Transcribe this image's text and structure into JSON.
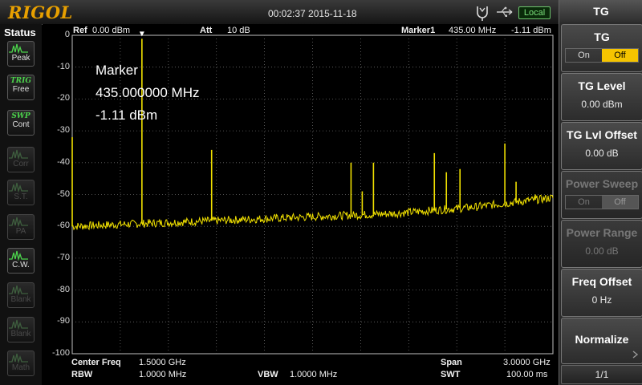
{
  "header": {
    "brand": "RIGOL",
    "datetime": "00:02:37 2015-11-18",
    "remote_state": "Local"
  },
  "status": {
    "title": "Status",
    "items": [
      {
        "icon": "peak-icon",
        "label": "Peak",
        "top_text": "",
        "active": true
      },
      {
        "icon": "trig-icon",
        "label": "Free",
        "top_text": "TRIG",
        "active": true
      },
      {
        "icon": "swp-icon",
        "label": "Cont",
        "top_text": "SWP",
        "active": true
      },
      {
        "icon": "corr-icon",
        "label": "Corr",
        "top_text": "",
        "active": false
      },
      {
        "icon": "st-icon",
        "label": "S.T.",
        "top_text": "",
        "active": false
      },
      {
        "icon": "pa-icon",
        "label": "PA",
        "top_text": "",
        "active": false
      },
      {
        "icon": "cw-icon",
        "label": "C.W.",
        "top_text": "",
        "active": true
      },
      {
        "icon": "blank-icon",
        "label": "Blank",
        "top_text": "",
        "active": false
      },
      {
        "icon": "blank-icon",
        "label": "Blank",
        "top_text": "",
        "active": false
      },
      {
        "icon": "math-icon",
        "label": "Math",
        "top_text": "",
        "active": false
      }
    ]
  },
  "plot": {
    "ref_label": "Ref",
    "ref_value": "0.00 dBm",
    "att_label": "Att",
    "att_value": "10 dB",
    "marker_label": "Marker1",
    "marker_freq": "435.00 MHz",
    "marker_level": "-1.11 dBm",
    "marker_box": {
      "title": "Marker",
      "freq": "435.000000 MHz",
      "level": "-1.11 dBm"
    },
    "center_freq_label": "Center Freq",
    "center_freq_value": "1.5000 GHz",
    "span_label": "Span",
    "span_value": "3.0000 GHz",
    "rbw_label": "RBW",
    "rbw_value": "1.0000 MHz",
    "vbw_label": "VBW",
    "vbw_value": "1.0000 MHz",
    "swt_label": "SWT",
    "swt_value": "100.00 ms",
    "trace_color": "#f0e000"
  },
  "chart_data": {
    "type": "line",
    "xlabel": "",
    "ylabel": "",
    "xlim": [
      0,
      3000
    ],
    "ylim": [
      -100,
      0
    ],
    "y_ticks": [
      "0",
      "-10",
      "-20",
      "-30",
      "-40",
      "-50",
      "-60",
      "-70",
      "-80",
      "-90",
      "-100"
    ],
    "grid": true,
    "noise_floor": [
      [
        0,
        -60
      ],
      [
        500,
        -59
      ],
      [
        1000,
        -58
      ],
      [
        1500,
        -57
      ],
      [
        2000,
        -56
      ],
      [
        2500,
        -54
      ],
      [
        3000,
        -51
      ]
    ],
    "peaks": [
      {
        "x": 0,
        "y": -32
      },
      {
        "x": 435,
        "y": -1.11
      },
      {
        "x": 870,
        "y": -36
      },
      {
        "x": 1740,
        "y": -40
      },
      {
        "x": 1810,
        "y": -49
      },
      {
        "x": 1880,
        "y": -40
      },
      {
        "x": 2260,
        "y": -37
      },
      {
        "x": 2335,
        "y": -43
      },
      {
        "x": 2420,
        "y": -42
      },
      {
        "x": 2700,
        "y": -34
      },
      {
        "x": 2770,
        "y": -46
      },
      {
        "x": 2890,
        "y": -50
      }
    ]
  },
  "menu": {
    "title": "TG",
    "items": [
      {
        "type": "toggle",
        "title": "TG",
        "on": "On",
        "off": "Off",
        "selected": "Off",
        "enabled": true
      },
      {
        "type": "value",
        "title": "TG Level",
        "value": "0.00 dBm",
        "enabled": true
      },
      {
        "type": "value",
        "title": "TG Lvl Offset",
        "value": "0.00 dB",
        "enabled": true
      },
      {
        "type": "toggle",
        "title": "Power Sweep",
        "on": "On",
        "off": "Off",
        "selected": "Off",
        "enabled": false
      },
      {
        "type": "value",
        "title": "Power Range",
        "value": "0.00 dB",
        "enabled": false
      },
      {
        "type": "value",
        "title": "Freq Offset",
        "value": "0 Hz",
        "enabled": true
      },
      {
        "type": "action",
        "title": "Normalize",
        "value": "",
        "enabled": true
      }
    ],
    "page": "1/1"
  }
}
